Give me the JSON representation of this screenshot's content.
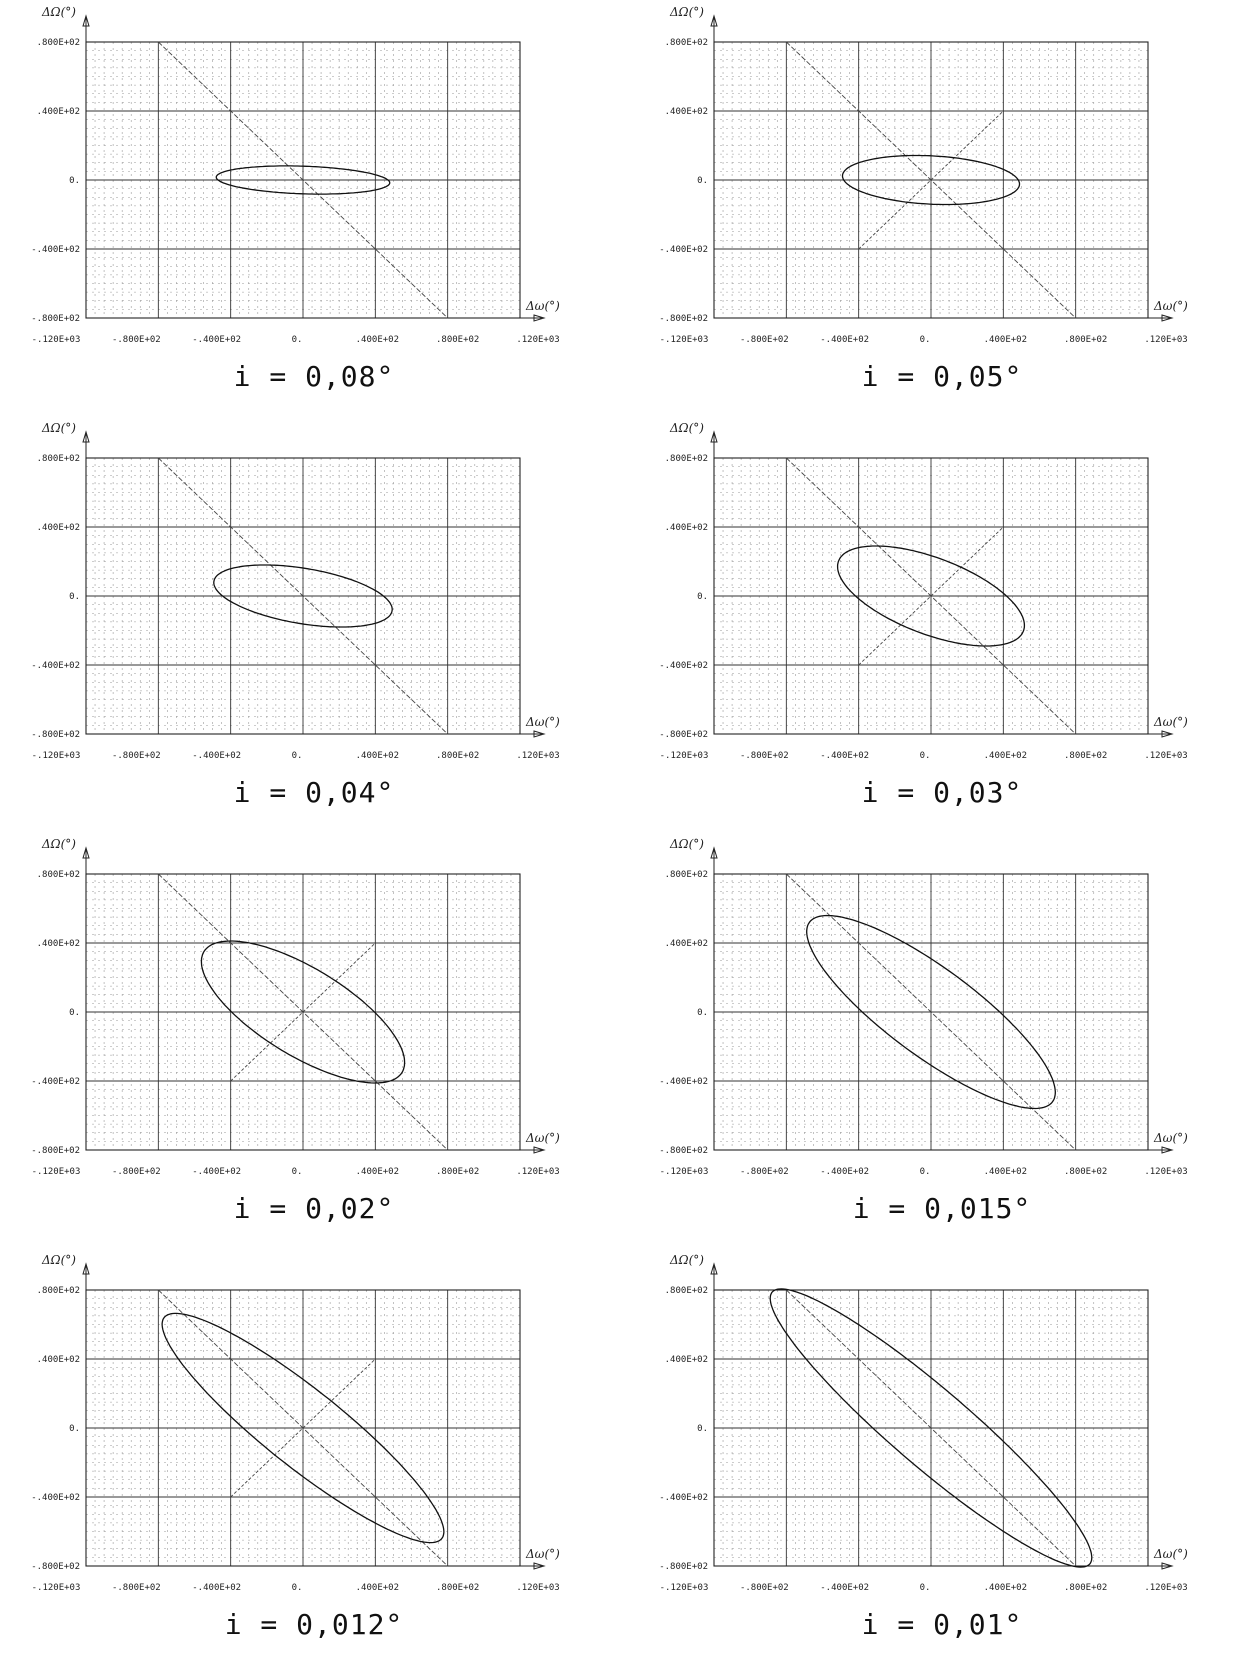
{
  "chart_data": [
    {
      "type": "line",
      "caption": "i = 0,08°",
      "xlabel": "Δω(°)",
      "ylabel": "ΔΩ(°)",
      "xlim": [
        -120,
        120
      ],
      "ylim": [
        -80,
        80
      ],
      "xticks": [
        "-.120E+03",
        "-.800E+02",
        "-.400E+02",
        "0.",
        ".400E+02",
        ".800E+02",
        ".120E+03"
      ],
      "yticks": [
        ".800E+02",
        ".400E+02",
        "0.",
        "-.400E+02",
        "-.800E+02"
      ],
      "series": [
        {
          "kind": "line",
          "points": [
            [
              -80,
              80
            ],
            [
              80,
              -80
            ]
          ]
        },
        {
          "kind": "ellipse",
          "center": [
            0,
            0
          ],
          "semi_major": 48,
          "semi_minor": 8,
          "rotation_deg": -2
        }
      ]
    },
    {
      "type": "line",
      "caption": "i = 0,05°",
      "xlabel": "Δω(°)",
      "ylabel": "ΔΩ(°)",
      "xlim": [
        -120,
        120
      ],
      "ylim": [
        -80,
        80
      ],
      "xticks": [
        "-.120E+03",
        "-.800E+02",
        "-.400E+02",
        "0.",
        ".400E+02",
        ".800E+02",
        ".120E+03"
      ],
      "yticks": [
        ".800E+02",
        ".400E+02",
        "0.",
        "-.400E+02",
        "-.800E+02"
      ],
      "series": [
        {
          "kind": "line",
          "points": [
            [
              -80,
              80
            ],
            [
              80,
              -80
            ]
          ]
        },
        {
          "kind": "line",
          "points": [
            [
              -40,
              -40
            ],
            [
              40,
              40
            ]
          ]
        },
        {
          "kind": "ellipse",
          "center": [
            0,
            0
          ],
          "semi_major": 49,
          "semi_minor": 14,
          "rotation_deg": -3
        }
      ]
    },
    {
      "type": "line",
      "caption": "i = 0,04°",
      "xlabel": "Δω(°)",
      "ylabel": "ΔΩ(°)",
      "xlim": [
        -120,
        120
      ],
      "ylim": [
        -80,
        80
      ],
      "xticks": [
        "-.120E+03",
        "-.800E+02",
        "-.400E+02",
        "0.",
        ".400E+02",
        ".800E+02",
        ".120E+03"
      ],
      "yticks": [
        ".800E+02",
        ".400E+02",
        "0.",
        "-.400E+02",
        "-.800E+02"
      ],
      "series": [
        {
          "kind": "line",
          "points": [
            [
              -80,
              80
            ],
            [
              80,
              -80
            ]
          ]
        },
        {
          "kind": "ellipse",
          "center": [
            0,
            0
          ],
          "semi_major": 50,
          "semi_minor": 16,
          "rotation_deg": -10
        }
      ]
    },
    {
      "type": "line",
      "caption": "i = 0,03°",
      "xlabel": "Δω(°)",
      "ylabel": "ΔΩ(°)",
      "xlim": [
        -120,
        120
      ],
      "ylim": [
        -80,
        80
      ],
      "xticks": [
        "-.120E+03",
        "-.800E+02",
        "-.400E+02",
        "0.",
        ".400E+02",
        ".800E+02",
        ".120E+03"
      ],
      "yticks": [
        ".800E+02",
        ".400E+02",
        "0.",
        "-.400E+02",
        "-.800E+02"
      ],
      "series": [
        {
          "kind": "line",
          "points": [
            [
              -80,
              80
            ],
            [
              80,
              -80
            ]
          ]
        },
        {
          "kind": "line",
          "points": [
            [
              -40,
              -40
            ],
            [
              40,
              40
            ]
          ]
        },
        {
          "kind": "ellipse",
          "center": [
            0,
            0
          ],
          "semi_major": 55,
          "semi_minor": 22,
          "rotation_deg": -22
        }
      ]
    },
    {
      "type": "line",
      "caption": "i = 0,02°",
      "xlabel": "Δω(°)",
      "ylabel": "ΔΩ(°)",
      "xlim": [
        -120,
        120
      ],
      "ylim": [
        -80,
        80
      ],
      "xticks": [
        "-.120E+03",
        "-.800E+02",
        "-.400E+02",
        "0.",
        ".400E+02",
        ".800E+02",
        ".120E+03"
      ],
      "yticks": [
        ".800E+02",
        ".400E+02",
        "0.",
        "-.400E+02",
        "-.800E+02"
      ],
      "series": [
        {
          "kind": "line",
          "points": [
            [
              -80,
              80
            ],
            [
              80,
              -80
            ]
          ]
        },
        {
          "kind": "line",
          "points": [
            [
              -40,
              -40
            ],
            [
              40,
              40
            ]
          ]
        },
        {
          "kind": "ellipse",
          "center": [
            0,
            0
          ],
          "semi_major": 65,
          "semi_minor": 25,
          "rotation_deg": -33
        }
      ]
    },
    {
      "type": "line",
      "caption": "i = 0,015°",
      "xlabel": "Δω(°)",
      "ylabel": "ΔΩ(°)",
      "xlim": [
        -120,
        120
      ],
      "ylim": [
        -80,
        80
      ],
      "xticks": [
        "-.120E+03",
        "-.800E+02",
        "-.400E+02",
        "0.",
        ".400E+02",
        ".800E+02",
        ".120E+03"
      ],
      "yticks": [
        ".800E+02",
        ".400E+02",
        "0.",
        "-.400E+02",
        "-.800E+02"
      ],
      "series": [
        {
          "kind": "line",
          "points": [
            [
              -80,
              80
            ],
            [
              80,
              -80
            ]
          ]
        },
        {
          "kind": "ellipse",
          "center": [
            0,
            0
          ],
          "semi_major": 85,
          "semi_minor": 25,
          "rotation_deg": -38
        }
      ]
    },
    {
      "type": "line",
      "caption": "i = 0,012°",
      "xlabel": "Δω(°)",
      "ylabel": "ΔΩ(°)",
      "xlim": [
        -120,
        120
      ],
      "ylim": [
        -80,
        80
      ],
      "xticks": [
        "-.120E+03",
        "-.800E+02",
        "-.400E+02",
        "0.",
        ".400E+02",
        ".800E+02",
        ".120E+03"
      ],
      "yticks": [
        ".800E+02",
        ".400E+02",
        "0.",
        "-.400E+02",
        "-.800E+02"
      ],
      "series": [
        {
          "kind": "line",
          "points": [
            [
              -80,
              80
            ],
            [
              80,
              -80
            ]
          ]
        },
        {
          "kind": "line",
          "points": [
            [
              -40,
              -40
            ],
            [
              40,
              40
            ]
          ]
        },
        {
          "kind": "ellipse",
          "center": [
            0,
            0
          ],
          "semi_major": 100,
          "semi_minor": 22,
          "rotation_deg": -40
        }
      ]
    },
    {
      "type": "line",
      "caption": "i = 0,01°",
      "xlabel": "Δω(°)",
      "ylabel": "ΔΩ(°)",
      "xlim": [
        -120,
        120
      ],
      "ylim": [
        -80,
        80
      ],
      "xticks": [
        "-.120E+03",
        "-.800E+02",
        "-.400E+02",
        "0.",
        ".400E+02",
        ".800E+02",
        ".120E+03"
      ],
      "yticks": [
        ".800E+02",
        ".400E+02",
        "0.",
        "-.400E+02",
        "-.800E+02"
      ],
      "series": [
        {
          "kind": "line",
          "points": [
            [
              -80,
              80
            ],
            [
              80,
              -80
            ]
          ]
        },
        {
          "kind": "ellipse",
          "center": [
            0,
            0
          ],
          "semi_major": 118,
          "semi_minor": 22,
          "rotation_deg": -42
        }
      ]
    }
  ]
}
